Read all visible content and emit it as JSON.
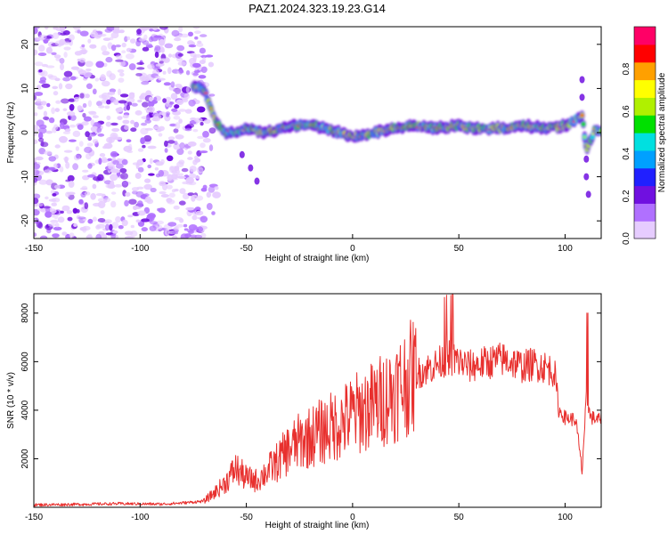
{
  "title": "PAZ1.2024.323.19.23.G14",
  "chart_data": [
    {
      "type": "heatmap",
      "xlabel": "Height of straight line (km)",
      "ylabel": "Frequency (Hz)",
      "xlim": [
        -150,
        117
      ],
      "ylim": [
        -24,
        24
      ],
      "xticks": [
        -150,
        -100,
        -50,
        0,
        50,
        100
      ],
      "yticks": [
        -20,
        -10,
        0,
        10,
        20
      ],
      "colorbar": {
        "label": "Normalized spectral amplitude",
        "range": [
          0,
          1
        ],
        "ticks": [
          "0.0",
          "0.2",
          "0.4",
          "0.6",
          "0.8"
        ],
        "colors": [
          "#e6ccff",
          "#b070ff",
          "#7010e0",
          "#2020ff",
          "#00a0ff",
          "#00e0e0",
          "#00e000",
          "#b0f000",
          "#ffff00",
          "#ffa000",
          "#ff0000",
          "#ff0066"
        ]
      },
      "ridge": [
        [
          -75,
          10.5
        ],
        [
          -70,
          10
        ],
        [
          -65,
          3
        ],
        [
          -60,
          0
        ],
        [
          -55,
          0
        ],
        [
          -50,
          1
        ],
        [
          -40,
          0
        ],
        [
          -30,
          1.5
        ],
        [
          -20,
          2
        ],
        [
          -10,
          0.5
        ],
        [
          0,
          -1
        ],
        [
          10,
          0
        ],
        [
          20,
          1
        ],
        [
          30,
          1.5
        ],
        [
          40,
          1
        ],
        [
          50,
          1.5
        ],
        [
          60,
          1
        ],
        [
          70,
          1
        ],
        [
          80,
          1.5
        ],
        [
          90,
          1
        ],
        [
          100,
          1.5
        ],
        [
          108,
          4
        ],
        [
          110,
          -4
        ],
        [
          114,
          0.5
        ]
      ],
      "noise_region": [
        -150,
        -70
      ]
    },
    {
      "type": "line",
      "xlabel": "Height of straight line (km)",
      "ylabel": "SNR (10 * v/v)",
      "xlim": [
        -150,
        117
      ],
      "ylim": [
        0,
        8800
      ],
      "xticks": [
        -150,
        -100,
        -50,
        0,
        50,
        100
      ],
      "yticks": [
        2000,
        4000,
        6000,
        8000
      ],
      "color": "#e8302e",
      "x": [
        -150,
        -130,
        -110,
        -90,
        -80,
        -70,
        -65,
        -60,
        -55,
        -50,
        -45,
        -40,
        -35,
        -30,
        -25,
        -20,
        -15,
        -10,
        -5,
        0,
        5,
        10,
        15,
        20,
        25,
        30,
        35,
        40,
        45,
        50,
        55,
        60,
        65,
        70,
        75,
        80,
        85,
        90,
        95,
        97,
        100,
        105,
        108,
        110,
        112,
        117
      ],
      "values": [
        100,
        120,
        150,
        130,
        180,
        250,
        600,
        1000,
        1600,
        1200,
        1100,
        1500,
        1900,
        2400,
        2700,
        2900,
        3100,
        3300,
        3500,
        3800,
        4000,
        4200,
        4500,
        4800,
        5200,
        5500,
        5700,
        5900,
        6200,
        6000,
        5800,
        5900,
        6000,
        6100,
        6000,
        5800,
        5900,
        5800,
        5600,
        4000,
        3700,
        3600,
        1500,
        4500,
        3700,
        3600
      ]
    }
  ]
}
